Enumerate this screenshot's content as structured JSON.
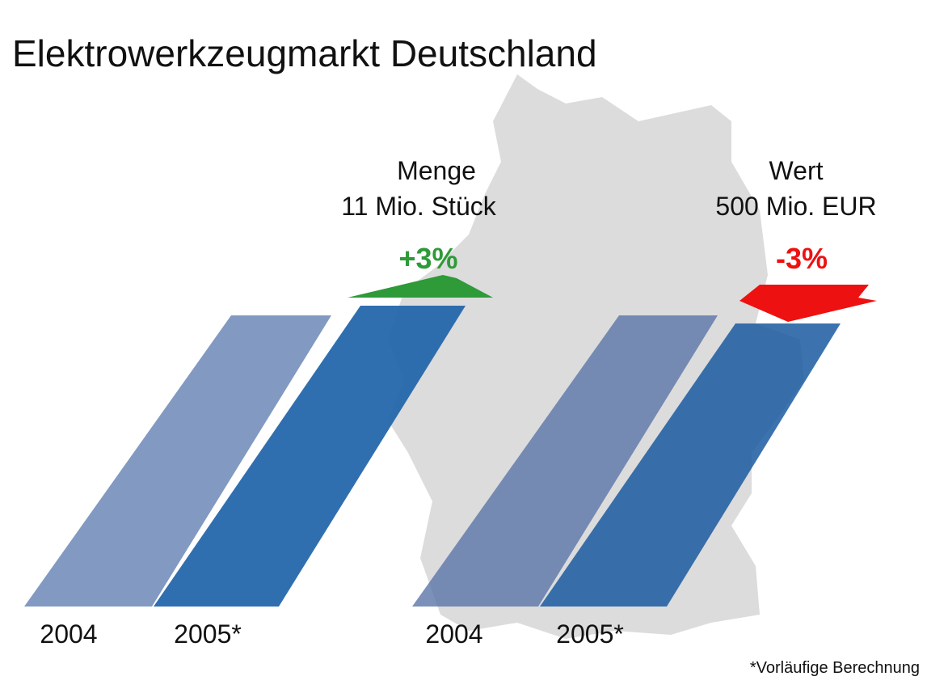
{
  "title": "Elektrowerkzeugmarkt Deutschland",
  "groups": [
    {
      "label": "Menge",
      "amount": "11 Mio. Stück",
      "change": "+3%",
      "years": [
        "2004",
        "2005*"
      ]
    },
    {
      "label": "Wert",
      "amount": "500 Mio. EUR",
      "change": "-3%",
      "years": [
        "2004",
        "2005*"
      ]
    }
  ],
  "footnote": "*Vorläufige Berechnung"
}
